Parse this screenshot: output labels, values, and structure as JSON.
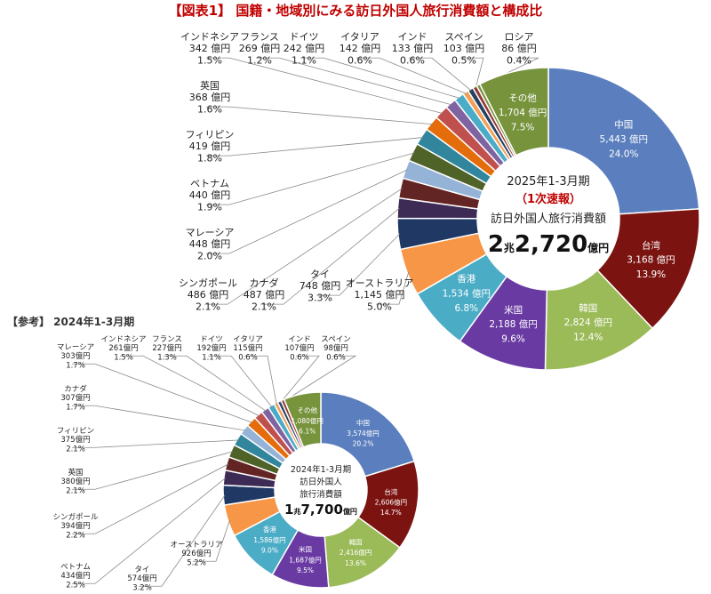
{
  "title": "【図表1】 国籍・地域別にみる訪日外国人旅行消費額と構成比",
  "reference_label": "【参考】 2024年1-3月期",
  "chart_data": [
    {
      "type": "pie",
      "variant": "donut",
      "center": {
        "period": "2025年1-3月期",
        "status": "（1次速報）",
        "label": "訪日外国人旅行消費額",
        "total_big": "2",
        "total_unit1": "兆",
        "total_mid": "2,720",
        "total_unit2": "億円"
      },
      "slices": [
        {
          "name": "中国",
          "value": 5443,
          "value_text": "5,443 億円",
          "pct": "24.0%",
          "color": "#5b7fbe",
          "inside": true
        },
        {
          "name": "台湾",
          "value": 3168,
          "value_text": "3,168 億円",
          "pct": "13.9%",
          "color": "#7b1411",
          "inside": true
        },
        {
          "name": "韓国",
          "value": 2824,
          "value_text": "2,824 億円",
          "pct": "12.4%",
          "color": "#9bbb59",
          "inside": true
        },
        {
          "name": "米国",
          "value": 2188,
          "value_text": "2,188 億円",
          "pct": "9.6%",
          "color": "#6a3aa3",
          "inside": true
        },
        {
          "name": "香港",
          "value": 1534,
          "value_text": "1,534 億円",
          "pct": "6.8%",
          "color": "#4bacc6",
          "inside": true
        },
        {
          "name": "オーストラリア",
          "value": 1145,
          "value_text": "1,145 億円",
          "pct": "5.0%",
          "color": "#f79646",
          "inside": false
        },
        {
          "name": "タイ",
          "value": 748,
          "value_text": "748 億円",
          "pct": "3.3%",
          "color": "#1f3864",
          "inside": false
        },
        {
          "name": "カナダ",
          "value": 487,
          "value_text": "487 億円",
          "pct": "2.1%",
          "color": "#3d2b56",
          "inside": false
        },
        {
          "name": "シンガポール",
          "value": 486,
          "value_text": "486 億円",
          "pct": "2.1%",
          "color": "#632523",
          "inside": false
        },
        {
          "name": "マレーシア",
          "value": 448,
          "value_text": "448 億円",
          "pct": "2.0%",
          "color": "#95b3d7",
          "inside": false
        },
        {
          "name": "ベトナム",
          "value": 440,
          "value_text": "440 億円",
          "pct": "1.9%",
          "color": "#4f6228",
          "inside": false
        },
        {
          "name": "フィリピン",
          "value": 419,
          "value_text": "419 億円",
          "pct": "1.8%",
          "color": "#31859c",
          "inside": false
        },
        {
          "name": "英国",
          "value": 368,
          "value_text": "368 億円",
          "pct": "1.6%",
          "color": "#e46c0a",
          "inside": false
        },
        {
          "name": "インドネシア",
          "value": 342,
          "value_text": "342 億円",
          "pct": "1.5%",
          "color": "#c0504d",
          "inside": false
        },
        {
          "name": "フランス",
          "value": 269,
          "value_text": "269 億円",
          "pct": "1.2%",
          "color": "#8064a2",
          "inside": false
        },
        {
          "name": "ドイツ",
          "value": 242,
          "value_text": "242 億円",
          "pct": "1.1%",
          "color": "#4aacc6",
          "inside": false
        },
        {
          "name": "イタリア",
          "value": 142,
          "value_text": "142 億円",
          "pct": "0.6%",
          "color": "#f2a05a",
          "inside": false
        },
        {
          "name": "インド",
          "value": 133,
          "value_text": "133 億円",
          "pct": "0.6%",
          "color": "#244062",
          "inside": false
        },
        {
          "name": "スペイン",
          "value": 103,
          "value_text": "103 億円",
          "pct": "0.5%",
          "color": "#953735",
          "inside": false
        },
        {
          "name": "ロシア",
          "value": 86,
          "value_text": "86 億円",
          "pct": "0.4%",
          "color": "#76923c",
          "inside": false
        },
        {
          "name": "その他",
          "value": 1704,
          "value_text": "1,704 億円",
          "pct": "7.5%",
          "color": "#77933c",
          "inside": true
        }
      ]
    },
    {
      "type": "pie",
      "variant": "donut",
      "center": {
        "period": "2024年1-3月期",
        "line1": "訪日外国人",
        "line2": "旅行消費額",
        "total_big": "1",
        "total_unit1": "兆",
        "total_mid": "7,700",
        "total_unit2": "億円"
      },
      "slices": [
        {
          "name": "中国",
          "value": 3574,
          "value_text": "3,574億円",
          "pct": "20.2%",
          "color": "#5b7fbe",
          "inside": true
        },
        {
          "name": "台湾",
          "value": 2606,
          "value_text": "2,606億円",
          "pct": "14.7%",
          "color": "#7b1411",
          "inside": true
        },
        {
          "name": "韓国",
          "value": 2416,
          "value_text": "2,416億円",
          "pct": "13.6%",
          "color": "#9bbb59",
          "inside": true
        },
        {
          "name": "米国",
          "value": 1687,
          "value_text": "1,687億円",
          "pct": "9.5%",
          "color": "#6a3aa3",
          "inside": true
        },
        {
          "name": "香港",
          "value": 1586,
          "value_text": "1,586億円",
          "pct": "9.0%",
          "color": "#4bacc6",
          "inside": true
        },
        {
          "name": "オーストラリア",
          "value": 926,
          "value_text": "926億円",
          "pct": "5.2%",
          "color": "#f79646",
          "inside": false
        },
        {
          "name": "タイ",
          "value": 574,
          "value_text": "574億円",
          "pct": "3.2%",
          "color": "#1f3864",
          "inside": false
        },
        {
          "name": "ベトナム",
          "value": 434,
          "value_text": "434億円",
          "pct": "2.5%",
          "color": "#3d2b56",
          "inside": false
        },
        {
          "name": "シンガポール",
          "value": 394,
          "value_text": "394億円",
          "pct": "2.2%",
          "color": "#632523",
          "inside": false
        },
        {
          "name": "英国",
          "value": 380,
          "value_text": "380億円",
          "pct": "2.1%",
          "color": "#4f6228",
          "inside": false
        },
        {
          "name": "フィリピン",
          "value": 375,
          "value_text": "375億円",
          "pct": "2.1%",
          "color": "#31859c",
          "inside": false
        },
        {
          "name": "カナダ",
          "value": 307,
          "value_text": "307億円",
          "pct": "1.7%",
          "color": "#95b3d7",
          "inside": false
        },
        {
          "name": "マレーシア",
          "value": 303,
          "value_text": "303億円",
          "pct": "1.7%",
          "color": "#e46c0a",
          "inside": false
        },
        {
          "name": "インドネシア",
          "value": 261,
          "value_text": "261億円",
          "pct": "1.5%",
          "color": "#c0504d",
          "inside": false
        },
        {
          "name": "フランス",
          "value": 227,
          "value_text": "227億円",
          "pct": "1.3%",
          "color": "#8064a2",
          "inside": false
        },
        {
          "name": "ドイツ",
          "value": 192,
          "value_text": "192億円",
          "pct": "1.1%",
          "color": "#4aacc6",
          "inside": false
        },
        {
          "name": "イタリア",
          "value": 115,
          "value_text": "115億円",
          "pct": "0.6%",
          "color": "#f2a05a",
          "inside": false
        },
        {
          "name": "インド",
          "value": 107,
          "value_text": "107億円",
          "pct": "0.6%",
          "color": "#244062",
          "inside": false
        },
        {
          "name": "スペイン",
          "value": 98,
          "value_text": "98億円",
          "pct": "0.6%",
          "color": "#953735",
          "inside": false
        },
        {
          "name": "その他",
          "value": 1080,
          "value_text": "1,080億円",
          "pct": "6.1%",
          "color": "#77933c",
          "inside": true
        }
      ]
    }
  ]
}
